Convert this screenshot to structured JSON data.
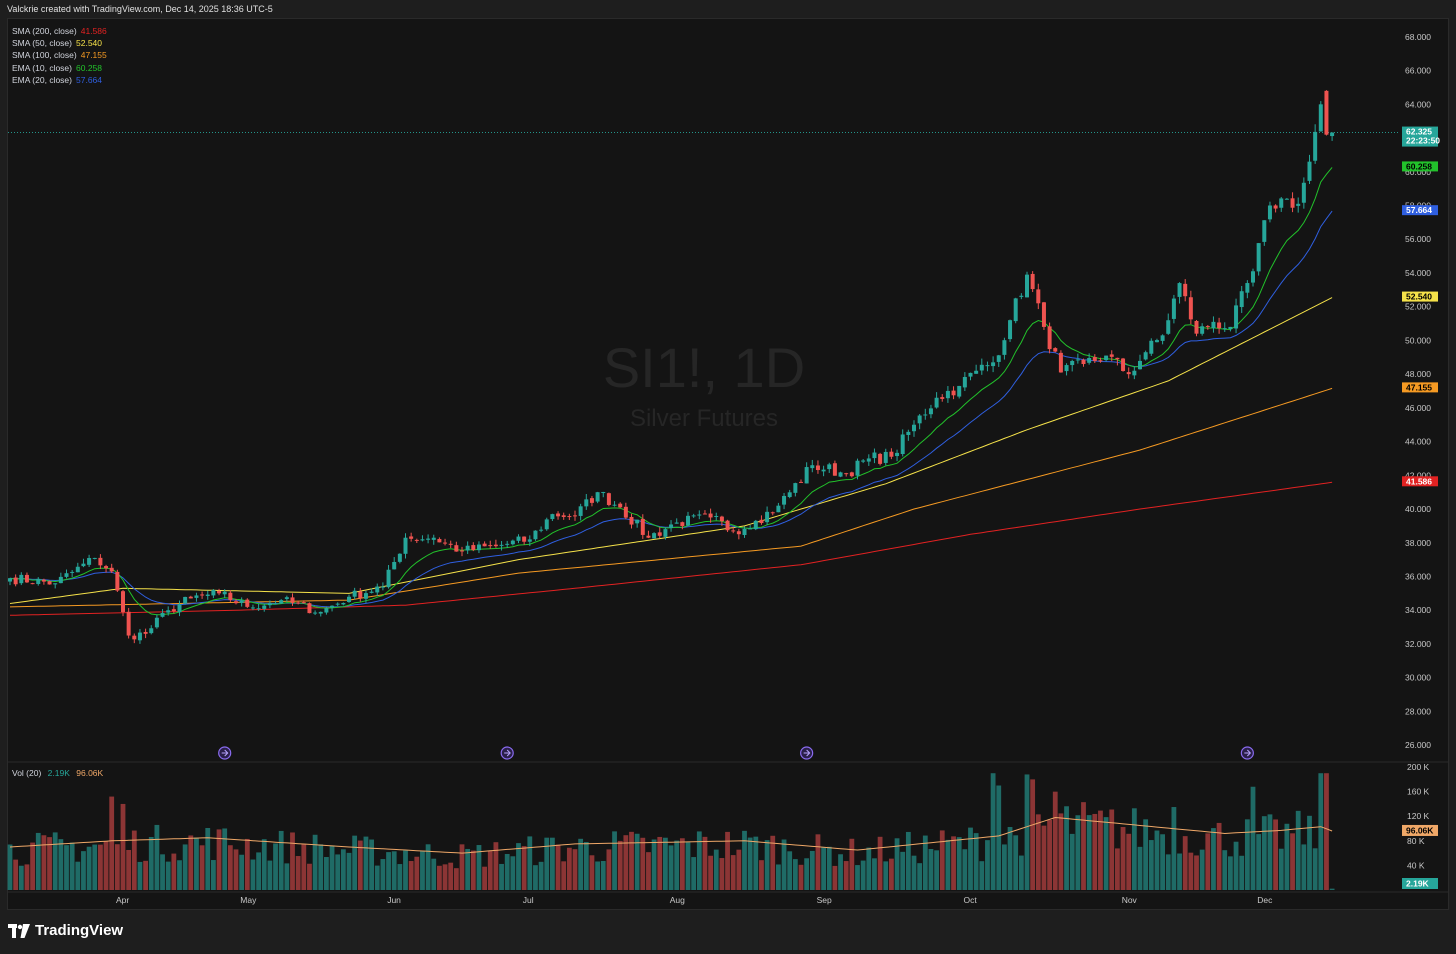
{
  "header": {
    "credit": "Valckrie created with TradingView.com, Dec 14, 2025 18:36 UTC-5"
  },
  "watermark": {
    "symbol": "SI1!, 1D",
    "name": "Silver Futures"
  },
  "legend": [
    {
      "name": "SMA (200, close)",
      "value": "41.586",
      "color": "#e22222"
    },
    {
      "name": "SMA (50, close)",
      "value": "52.540",
      "color": "#f5e24a"
    },
    {
      "name": "SMA (100, close)",
      "value": "47.155",
      "color": "#f59a23"
    },
    {
      "name": "EMA (10, close)",
      "value": "60.258",
      "color": "#22c22b"
    },
    {
      "name": "EMA (20, close)",
      "value": "57.664",
      "color": "#2f5fe0"
    }
  ],
  "volume_legend": {
    "name": "Vol (20)",
    "value": "2.19K",
    "ma_value": "96.06K"
  },
  "footer": {
    "brand": "TradingView"
  },
  "colors": {
    "up": "#26a69a",
    "down": "#ef5350",
    "vol_up": "#1f6b66",
    "vol_down": "#8c3535",
    "vol_ma": "#f0a868"
  },
  "chart_data": {
    "type": "candlestick",
    "symbol": "SI1!",
    "interval": "1D",
    "y_ticks": [
      "68.000",
      "66.000",
      "64.000",
      "62.000",
      "60.000",
      "58.000",
      "56.000",
      "54.000",
      "52.000",
      "50.000",
      "48.000",
      "46.000",
      "44.000",
      "42.000",
      "40.000",
      "38.000",
      "36.000",
      "34.000",
      "32.000",
      "30.000",
      "28.000",
      "26.000"
    ],
    "y_range": [
      25,
      69
    ],
    "x_labels": [
      "Apr",
      "May",
      "Jun",
      "Jul",
      "Aug",
      "Sep",
      "Oct",
      "Nov",
      "Dec"
    ],
    "volume_ticks": [
      "200 K",
      "160 K",
      "120 K",
      "80 K",
      "40 K"
    ],
    "volume_range": [
      0,
      205000
    ],
    "price_tags": [
      {
        "label": "62.325",
        "sub": "22:23:50",
        "value": 62.325,
        "color": "#26a69a"
      },
      {
        "label": "60.258",
        "value": 60.258,
        "color": "#22c22b"
      },
      {
        "label": "57.664",
        "value": 57.664,
        "color": "#2f5fe0"
      },
      {
        "label": "52.540",
        "value": 52.54,
        "color": "#f5e24a"
      },
      {
        "label": "47.155",
        "value": 47.155,
        "color": "#f59a23"
      },
      {
        "label": "41.586",
        "value": 41.586,
        "color": "#e22222"
      }
    ],
    "volume_tags": [
      {
        "label": "96.06K",
        "value": 96060,
        "color": "#f0a868"
      },
      {
        "label": "2.19K",
        "value": 2190,
        "color": "#26a69a"
      }
    ],
    "anchors": [
      [
        0,
        35.9
      ],
      [
        8,
        35.6
      ],
      [
        15,
        37.1
      ],
      [
        18,
        36.3
      ],
      [
        21,
        32.5
      ],
      [
        24,
        32.6
      ],
      [
        28,
        34.0
      ],
      [
        32,
        34.7
      ],
      [
        37,
        35.0
      ],
      [
        42,
        34.2
      ],
      [
        48,
        34.6
      ],
      [
        55,
        33.9
      ],
      [
        60,
        34.8
      ],
      [
        66,
        35.4
      ],
      [
        70,
        38.3
      ],
      [
        75,
        38.3
      ],
      [
        80,
        37.5
      ],
      [
        86,
        37.8
      ],
      [
        92,
        38.2
      ],
      [
        96,
        39.7
      ],
      [
        100,
        39.6
      ],
      [
        104,
        41.0
      ],
      [
        108,
        40.1
      ],
      [
        113,
        38.3
      ],
      [
        118,
        39.2
      ],
      [
        124,
        39.5
      ],
      [
        128,
        38.7
      ],
      [
        132,
        39.3
      ],
      [
        136,
        40.2
      ],
      [
        142,
        42.6
      ],
      [
        148,
        42.1
      ],
      [
        152,
        43.0
      ],
      [
        156,
        43.1
      ],
      [
        160,
        45.0
      ],
      [
        164,
        46.6
      ],
      [
        168,
        47.3
      ],
      [
        171,
        48.2
      ],
      [
        174,
        48.7
      ],
      [
        177,
        51.2
      ],
      [
        180,
        53.9
      ],
      [
        183,
        50.8
      ],
      [
        186,
        48.1
      ],
      [
        190,
        48.6
      ],
      [
        194,
        49.1
      ],
      [
        198,
        48.0
      ],
      [
        201,
        49.3
      ],
      [
        204,
        50.3
      ],
      [
        207,
        53.4
      ],
      [
        210,
        50.4
      ],
      [
        213,
        51.1
      ],
      [
        216,
        50.8
      ],
      [
        220,
        54.1
      ],
      [
        223,
        58.0
      ],
      [
        226,
        58.4
      ],
      [
        228,
        58.1
      ],
      [
        230,
        60.6
      ],
      [
        232,
        64.0
      ],
      [
        233,
        62.2
      ],
      [
        234,
        62.325
      ]
    ],
    "overlays": {
      "sma200": [
        [
          0,
          33.7
        ],
        [
          40,
          34.0
        ],
        [
          70,
          34.3
        ],
        [
          100,
          35.3
        ],
        [
          140,
          36.7
        ],
        [
          170,
          38.5
        ],
        [
          200,
          40.0
        ],
        [
          234,
          41.586
        ]
      ],
      "sma100": [
        [
          0,
          34.2
        ],
        [
          60,
          34.6
        ],
        [
          90,
          36.2
        ],
        [
          140,
          37.8
        ],
        [
          160,
          40.0
        ],
        [
          200,
          43.5
        ],
        [
          234,
          47.155
        ]
      ],
      "sma50": [
        [
          0,
          34.4
        ],
        [
          20,
          35.3
        ],
        [
          60,
          35.0
        ],
        [
          90,
          37.0
        ],
        [
          130,
          39.0
        ],
        [
          155,
          41.5
        ],
        [
          180,
          44.7
        ],
        [
          205,
          47.6
        ],
        [
          234,
          52.54
        ]
      ]
    },
    "volume_ma": [
      [
        0,
        70000
      ],
      [
        18,
        80000
      ],
      [
        35,
        85000
      ],
      [
        60,
        70000
      ],
      [
        80,
        60000
      ],
      [
        100,
        75000
      ],
      [
        130,
        80000
      ],
      [
        150,
        65000
      ],
      [
        175,
        88000
      ],
      [
        185,
        118000
      ],
      [
        200,
        105000
      ],
      [
        215,
        92000
      ],
      [
        225,
        97000
      ],
      [
        232,
        103000
      ],
      [
        234,
        96060
      ]
    ],
    "volume_spikes": [
      [
        18,
        152000
      ],
      [
        20,
        140000
      ],
      [
        174,
        190000
      ],
      [
        175,
        170000
      ],
      [
        180,
        188000
      ],
      [
        181,
        180000
      ],
      [
        185,
        160000
      ],
      [
        206,
        135000
      ],
      [
        220,
        168000
      ],
      [
        232,
        190000
      ],
      [
        233,
        190000
      ]
    ],
    "event_markers_x": [
      38,
      88,
      141,
      219
    ]
  }
}
